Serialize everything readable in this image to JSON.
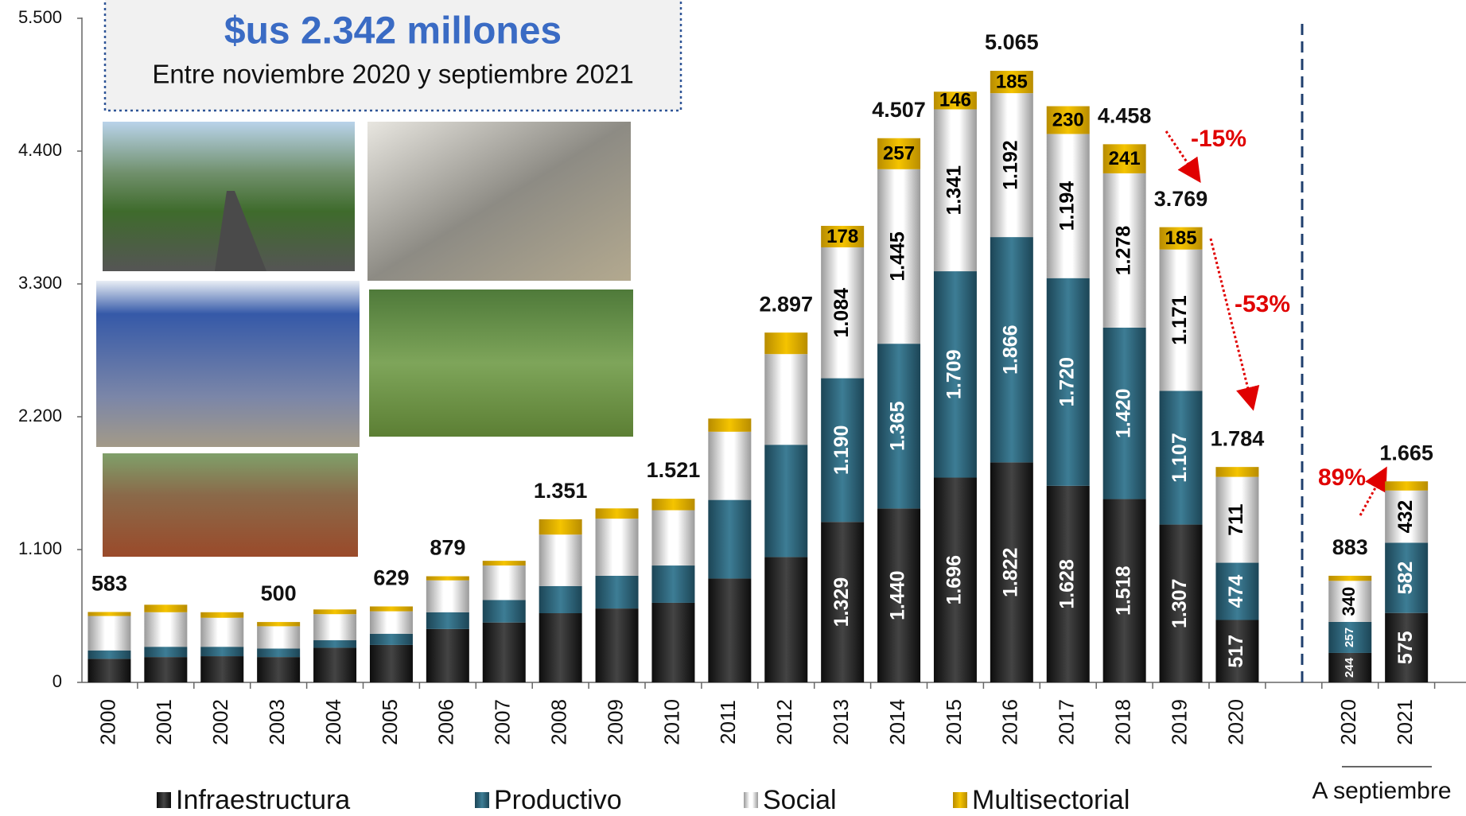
{
  "chart_data": {
    "type": "stacked_bar",
    "title": "$us 2.342 millones",
    "subtitle": "Entre noviembre 2020 y septiembre 2021",
    "group_label": "A septiembre",
    "categories": [
      "2000",
      "2001",
      "2002",
      "2003",
      "2004",
      "2005",
      "2006",
      "2007",
      "2008",
      "2009",
      "2010",
      "2011",
      "2012",
      "2013",
      "2014",
      "2015",
      "2016",
      "2017",
      "2018",
      "2019",
      "2020",
      null,
      "2020",
      "2021"
    ],
    "series": [
      {
        "name": "Infraestructura",
        "color": "#262626",
        "values": [
          195,
          210,
          217,
          210,
          287,
          310,
          442,
          496,
          573,
          612,
          659,
          860,
          1038,
          1329,
          1440,
          1696,
          1822,
          1628,
          1518,
          1307,
          517,
          null,
          244,
          575
        ],
        "value_labels": [
          null,
          null,
          null,
          null,
          null,
          null,
          null,
          null,
          null,
          null,
          null,
          null,
          null,
          "1.329",
          "1.440",
          "1.696",
          "1.822",
          "1.628",
          "1.518",
          "1.307",
          "517",
          null,
          "244",
          "575"
        ]
      },
      {
        "name": "Productivo",
        "color": "#2b5f75",
        "values": [
          70,
          85,
          78,
          70,
          62,
          93,
          139,
          186,
          225,
          271,
          309,
          651,
          930,
          1190,
          1365,
          1709,
          1866,
          1720,
          1420,
          1107,
          474,
          null,
          257,
          582
        ],
        "value_labels": [
          null,
          null,
          null,
          null,
          null,
          null,
          null,
          null,
          null,
          null,
          null,
          null,
          null,
          "1.190",
          "1.365",
          "1.709",
          "1.866",
          "1.720",
          "1.420",
          "1.107",
          "474",
          null,
          "257",
          "582"
        ]
      },
      {
        "name": "Social",
        "color": "#e6e6e6",
        "values": [
          285,
          286,
          240,
          185,
          216,
          186,
          264,
          286,
          426,
          473,
          458,
          565,
          751,
          1084,
          1445,
          1341,
          1192,
          1194,
          1278,
          1171,
          711,
          null,
          340,
          432
        ],
        "value_labels": [
          null,
          null,
          null,
          null,
          null,
          null,
          null,
          null,
          null,
          null,
          null,
          null,
          null,
          "1.084",
          "1.445",
          "1.341",
          "1.192",
          "1.194",
          "1.278",
          "1.171",
          "711",
          null,
          "340",
          "432"
        ]
      },
      {
        "name": "Multisectorial",
        "color": "#d9a800",
        "values": [
          33,
          62,
          46,
          35,
          39,
          40,
          34,
          39,
          127,
          85,
          95,
          109,
          178,
          178,
          257,
          146,
          185,
          230,
          241,
          185,
          82,
          null,
          42,
          76
        ],
        "value_labels": [
          null,
          null,
          null,
          null,
          null,
          null,
          null,
          null,
          null,
          null,
          null,
          null,
          null,
          "178",
          "257",
          "146",
          "185",
          "230",
          "241",
          "185",
          null,
          null,
          null,
          null
        ]
      }
    ],
    "totals": [
      {
        "value": 583,
        "label": "583"
      },
      null,
      null,
      {
        "value": 500,
        "label": "500"
      },
      null,
      {
        "value": 629,
        "label": "629"
      },
      {
        "value": 879,
        "label": "879"
      },
      null,
      {
        "value": 1351,
        "label": "1.351"
      },
      null,
      {
        "value": 1521,
        "label": "1.521"
      },
      null,
      {
        "value": 2897,
        "label": "2.897"
      },
      null,
      {
        "value": 4507,
        "label": "4.507"
      },
      null,
      {
        "value": 5065,
        "label": "5.065"
      },
      null,
      {
        "value": 4458,
        "label": "4.458"
      },
      {
        "value": 3769,
        "label": "3.769"
      },
      {
        "value": 1784,
        "label": "1.784"
      },
      null,
      {
        "value": 883,
        "label": "883"
      },
      {
        "value": 1665,
        "label": "1.665"
      }
    ],
    "annotations": [
      {
        "text": "-15%"
      },
      {
        "text": "-53%"
      },
      {
        "text": "89%"
      }
    ],
    "ylim": [
      0,
      5500
    ],
    "yticks": [
      0,
      {
        "value": 1100,
        "label": "1.100"
      },
      {
        "value": 2200,
        "label": "2.200"
      },
      {
        "value": 3300,
        "label": "3.300"
      },
      {
        "value": 4400,
        "label": "4.400"
      },
      {
        "value": 5500,
        "label": "5.500"
      }
    ],
    "legend": "bottom"
  }
}
